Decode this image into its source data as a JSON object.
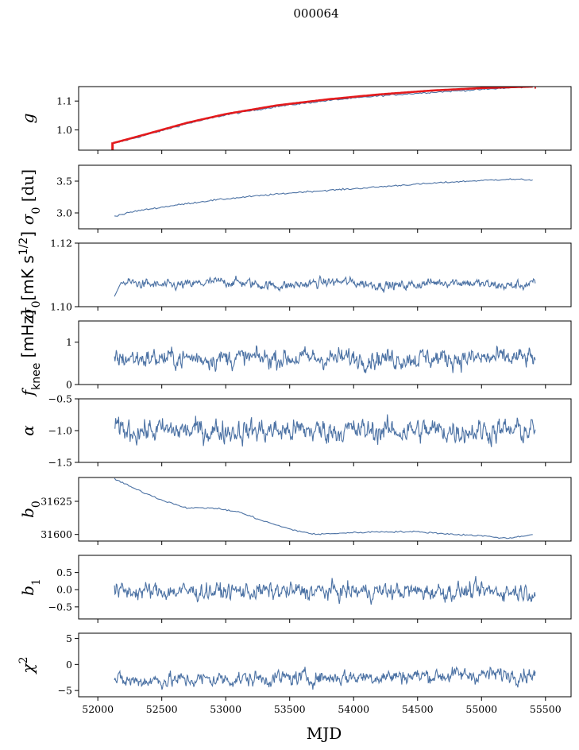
{
  "figure": {
    "title": "000064",
    "xlabel": "MJD"
  },
  "chart_data": [
    {
      "type": "line",
      "ylabel": "g",
      "ylim": [
        0.93,
        1.15
      ],
      "yticks": [
        1.0,
        1.1
      ],
      "ytick_labels": [
        "1.0",
        "1.1"
      ],
      "xlim": [
        51850,
        55700
      ],
      "xticks": [
        52000,
        52500,
        53000,
        53500,
        54000,
        54500,
        55000,
        55500
      ],
      "series": [
        {
          "color": "#4c72a4",
          "x": [
            52130,
            52150,
            52400,
            52700,
            53000,
            53400,
            53800,
            54200,
            54600,
            55000,
            55400
          ],
          "y": [
            0.952,
            0.956,
            0.985,
            1.022,
            1.052,
            1.081,
            1.102,
            1.118,
            1.13,
            1.14,
            1.15
          ]
        },
        {
          "color": "#e41a1c",
          "x": [
            52120,
            52150,
            52400,
            52700,
            53000,
            53400,
            53800,
            54200,
            54600,
            55000,
            55400
          ],
          "y": [
            0.955,
            0.958,
            0.988,
            1.025,
            1.055,
            1.085,
            1.106,
            1.123,
            1.136,
            1.145,
            1.15
          ]
        }
      ]
    },
    {
      "type": "line",
      "ylabel": "σ0 [du]",
      "ylim": [
        2.75,
        3.75
      ],
      "yticks": [
        3.0,
        3.5
      ],
      "ytick_labels": [
        "3.0",
        "3.5"
      ],
      "xlim": [
        51850,
        55700
      ],
      "series": [
        {
          "color": "#4c72a4",
          "x": [
            52130,
            52300,
            52600,
            52900,
            53200,
            53600,
            54000,
            54400,
            54800,
            55200,
            55400
          ],
          "y": [
            2.95,
            3.03,
            3.12,
            3.2,
            3.26,
            3.33,
            3.38,
            3.44,
            3.49,
            3.53,
            3.52
          ]
        }
      ]
    },
    {
      "type": "line",
      "ylabel": "σ0[mK s^1/2]",
      "ylim": [
        1.1,
        1.12
      ],
      "yticks": [
        1.1,
        1.12
      ],
      "ytick_labels": [
        "1.10",
        "1.12"
      ],
      "xlim": [
        51850,
        55700
      ],
      "series": [
        {
          "color": "#4c72a4",
          "mean": 1.1072,
          "noise": 0.0009
        }
      ]
    },
    {
      "type": "line",
      "ylabel": "fknee [mHz]",
      "ylim": [
        0,
        1.5
      ],
      "yticks": [
        0,
        1
      ],
      "ytick_labels": [
        "0",
        "1"
      ],
      "xlim": [
        51850,
        55700
      ],
      "series": [
        {
          "color": "#4c72a4",
          "mean": 0.62,
          "noise": 0.11
        }
      ]
    },
    {
      "type": "line",
      "ylabel": "α",
      "ylim": [
        -1.5,
        -0.5
      ],
      "yticks": [
        -1.5,
        -1.0,
        -0.5
      ],
      "ytick_labels": [
        "−1.5",
        "−1.0",
        "−0.5"
      ],
      "xlim": [
        51850,
        55700
      ],
      "series": [
        {
          "color": "#4c72a4",
          "mean": -1.0,
          "noise": 0.09
        }
      ]
    },
    {
      "type": "line",
      "ylabel": "b0",
      "ylim": [
        31595,
        31643
      ],
      "yticks": [
        31600,
        31625
      ],
      "ytick_labels": [
        "31600",
        "31625"
      ],
      "xlim": [
        51850,
        55700
      ],
      "series": [
        {
          "color": "#4c72a4",
          "x": [
            52130,
            52300,
            52500,
            52700,
            52900,
            53100,
            53300,
            53500,
            53700,
            53900,
            54200,
            54500,
            54800,
            55000,
            55200,
            55400
          ],
          "y": [
            31642,
            31634,
            31626,
            31620,
            31620,
            31617,
            31610,
            31604,
            31600,
            31601,
            31602,
            31602,
            31600,
            31599,
            31597,
            31600
          ]
        }
      ]
    },
    {
      "type": "line",
      "ylabel": "b1",
      "ylim": [
        -0.85,
        1.0
      ],
      "yticks": [
        -0.5,
        0.0,
        0.5
      ],
      "ytick_labels": [
        "−0.5",
        "0.0",
        "0.5"
      ],
      "xlim": [
        51850,
        55700
      ],
      "series": [
        {
          "color": "#4c72a4",
          "mean": -0.05,
          "noise": 0.12
        }
      ]
    },
    {
      "type": "line",
      "ylabel": "χ²",
      "ylim": [
        -6.2,
        6.0
      ],
      "yticks": [
        -5,
        0,
        5
      ],
      "ytick_labels": [
        "−5",
        "0",
        "5"
      ],
      "xlim": [
        51850,
        55700
      ],
      "xticks": [
        52000,
        52500,
        53000,
        53500,
        54000,
        54500,
        55000,
        55500
      ],
      "xtick_labels": [
        "52000",
        "52500",
        "53000",
        "53500",
        "54000",
        "54500",
        "55000",
        "55500"
      ],
      "series": [
        {
          "color": "#4c72a4",
          "mean": -2.0,
          "noise": 0.7
        }
      ]
    }
  ]
}
